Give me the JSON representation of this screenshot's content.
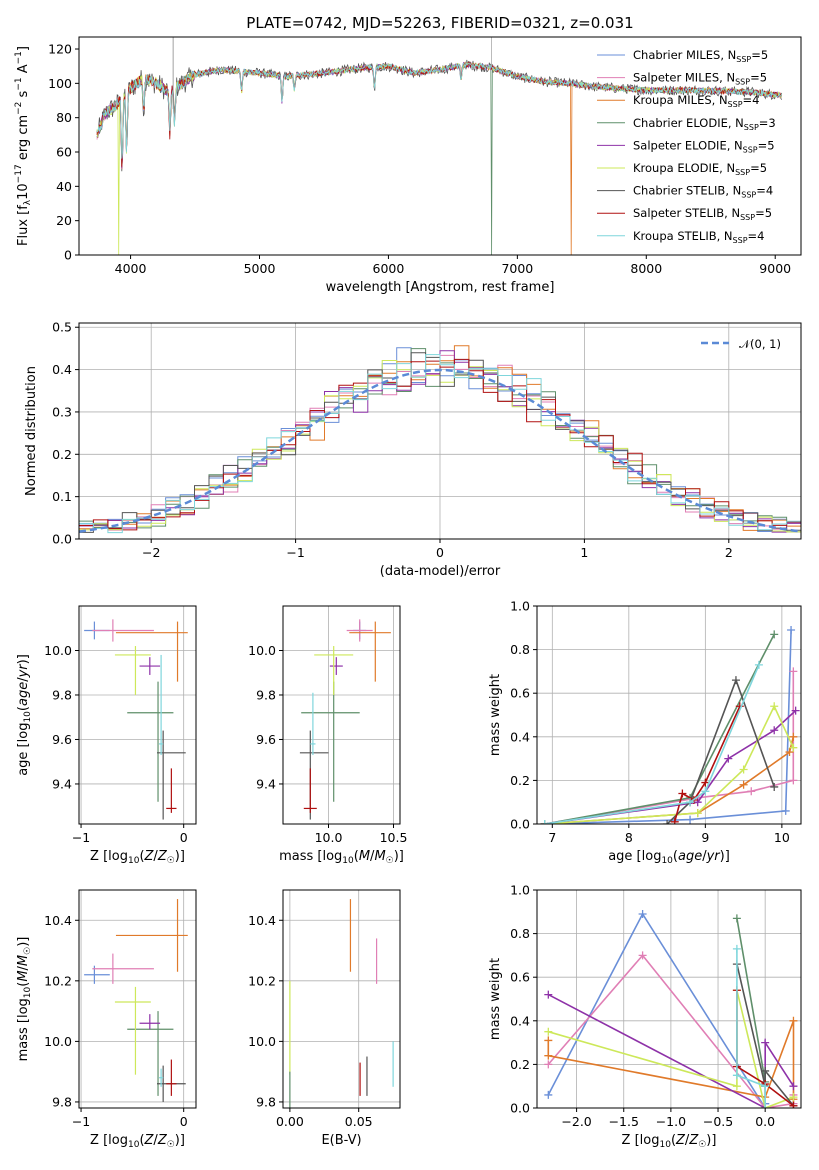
{
  "figure": {
    "title": "PLATE=0742, MJD=52263, FIBERID=0321, z=0.031"
  },
  "models": [
    {
      "name": "Chabrier MILES, N_SSP=5",
      "color": "#6a8fd8"
    },
    {
      "name": "Salpeter MILES, N_SSP=5",
      "color": "#e07fb5"
    },
    {
      "name": "Kroupa MILES, N_SSP=4",
      "color": "#e07a2a"
    },
    {
      "name": "Chabrier ELODIE, N_SSP=3",
      "color": "#5f8f6a"
    },
    {
      "name": "Salpeter ELODIE, N_SSP=5",
      "color": "#8e32a8"
    },
    {
      "name": "Kroupa ELODIE, N_SSP=5",
      "color": "#cde85a"
    },
    {
      "name": "Chabrier STELIB, N_SSP=4",
      "color": "#555555"
    },
    {
      "name": "Salpeter STELIB, N_SSP=5",
      "color": "#b01010"
    },
    {
      "name": "Kroupa STELIB, N_SSP=4",
      "color": "#7fd6dc"
    }
  ],
  "chart_data": [
    {
      "id": "spectrum",
      "type": "line",
      "title": "PLATE=0742, MJD=52263, FIBERID=0321, z=0.031",
      "xlabel": "wavelength [Angstrom, rest frame]",
      "ylabel": "Flux [f_λ 10^-17 erg cm^-2 s^-1 A^-1]",
      "xlim": [
        3600,
        9200
      ],
      "ylim": [
        0,
        127
      ],
      "xticks": [
        "4000",
        "5000",
        "6000",
        "7000",
        "8000",
        "9000"
      ],
      "yticks": [
        "0",
        "20",
        "40",
        "60",
        "80",
        "100",
        "120"
      ],
      "grid": false,
      "legend": "top-right",
      "continuum": {
        "x": [
          3740,
          3800,
          3900,
          4000,
          4100,
          4200,
          4300,
          4500,
          4700,
          5000,
          5200,
          5500,
          5800,
          6000,
          6200,
          6400,
          6600,
          6800,
          7000,
          7200,
          7400,
          7600,
          8000,
          8400,
          8800,
          9050
        ],
        "y": [
          70,
          82,
          88,
          97,
          103,
          100,
          95,
          105,
          108,
          106,
          104,
          106,
          109,
          110,
          106,
          108,
          111,
          109,
          104,
          101,
          100,
          98,
          96,
          96,
          95,
          93
        ]
      },
      "features": [
        {
          "x": 3934,
          "depth": 40
        },
        {
          "x": 3969,
          "depth": 35
        },
        {
          "x": 4102,
          "depth": 20
        },
        {
          "x": 4305,
          "depth": 25
        },
        {
          "x": 4341,
          "depth": 20
        },
        {
          "x": 4861,
          "depth": 12
        },
        {
          "x": 5175,
          "depth": 15
        },
        {
          "x": 5270,
          "depth": 8
        },
        {
          "x": 5892,
          "depth": 12
        },
        {
          "x": 6563,
          "depth": 8
        }
      ],
      "drops": [
        {
          "model": 5,
          "x": 3910,
          "to": 0
        },
        {
          "model": 3,
          "x": 6800,
          "to": 0
        },
        {
          "model": 2,
          "x": 7420,
          "to": 0
        }
      ]
    },
    {
      "id": "residual-histogram",
      "type": "histogram",
      "xlabel": "(data-model)/error",
      "ylabel": "Normed distribution",
      "xlim": [
        -2.5,
        2.5
      ],
      "ylim": [
        0,
        0.51
      ],
      "xticks": [
        "−2",
        "−1",
        "0",
        "1",
        "2"
      ],
      "yticks": [
        "0.0",
        "0.1",
        "0.2",
        "0.3",
        "0.4",
        "0.5"
      ],
      "grid": true,
      "legend": "top-right",
      "reference_curve": {
        "name": "𝒩(0, 1)",
        "mean": 0,
        "sigma": 1,
        "color": "#5b8ad6"
      },
      "bin_width": 0.1
    },
    {
      "id": "age-vs-metallicity",
      "type": "errorbar",
      "xlabel": "Z [log10(Z/Z☉)]",
      "ylabel": "age [log10(age/yr)]",
      "xlim": [
        -1.02,
        0.12
      ],
      "ylim": [
        9.22,
        10.2
      ],
      "xticks": [
        "−1",
        "0"
      ],
      "yticks": [
        "9.4",
        "9.6",
        "9.8",
        "10.0"
      ],
      "grid": true,
      "points": [
        {
          "model": 0,
          "x": -0.87,
          "y": 10.09,
          "xerr": [
            0.1,
            0.15
          ],
          "yerr": [
            0.04,
            0.04
          ]
        },
        {
          "model": 1,
          "x": -0.69,
          "y": 10.09,
          "xerr": [
            0.2,
            0.4
          ],
          "yerr": [
            0.05,
            0.05
          ]
        },
        {
          "model": 2,
          "x": -0.06,
          "y": 10.08,
          "xerr": [
            0.6,
            0.1
          ],
          "yerr": [
            0.22,
            0.05
          ]
        },
        {
          "model": 3,
          "x": -0.25,
          "y": 9.72,
          "xerr": [
            0.3,
            0.15
          ],
          "yerr": [
            0.4,
            0.14
          ]
        },
        {
          "model": 4,
          "x": -0.33,
          "y": 9.93,
          "xerr": [
            0.1,
            0.1
          ],
          "yerr": [
            0.04,
            0.04
          ]
        },
        {
          "model": 5,
          "x": -0.47,
          "y": 9.98,
          "xerr": [
            0.2,
            0.15
          ],
          "yerr": [
            0.18,
            0.04
          ]
        },
        {
          "model": 6,
          "x": -0.2,
          "y": 9.54,
          "xerr": [
            0.06,
            0.22
          ],
          "yerr": [
            0.3,
            0.1
          ]
        },
        {
          "model": 7,
          "x": -0.12,
          "y": 9.29,
          "xerr": [
            0.05,
            0.05
          ],
          "yerr": [
            0.02,
            0.18
          ]
        },
        {
          "model": 8,
          "x": -0.22,
          "y": 9.58,
          "xerr": [
            0.02,
            0.02
          ],
          "yerr": [
            0.05,
            0.4
          ]
        }
      ]
    },
    {
      "id": "age-vs-mass",
      "type": "errorbar",
      "xlabel": "mass [log10(M/M☉)]",
      "ylabel": "",
      "xlim": [
        9.65,
        10.55
      ],
      "ylim": [
        9.22,
        10.2
      ],
      "xticks": [
        "10.0",
        "10.5"
      ],
      "yticks": [
        "9.4",
        "9.6",
        "9.8",
        "10.0"
      ],
      "grid": true,
      "points": [
        {
          "model": 0,
          "x": 10.24,
          "y": 10.09,
          "xerr": [
            0.05,
            0.05
          ],
          "yerr": [
            0.04,
            0.04
          ]
        },
        {
          "model": 1,
          "x": 10.24,
          "y": 10.09,
          "xerr": [
            0.1,
            0.1
          ],
          "yerr": [
            0.05,
            0.05
          ]
        },
        {
          "model": 2,
          "x": 10.36,
          "y": 10.08,
          "xerr": [
            0.2,
            0.12
          ],
          "yerr": [
            0.22,
            0.05
          ]
        },
        {
          "model": 3,
          "x": 10.04,
          "y": 9.72,
          "xerr": [
            0.25,
            0.2
          ],
          "yerr": [
            0.4,
            0.14
          ]
        },
        {
          "model": 4,
          "x": 10.06,
          "y": 9.93,
          "xerr": [
            0.05,
            0.05
          ],
          "yerr": [
            0.04,
            0.04
          ]
        },
        {
          "model": 5,
          "x": 10.04,
          "y": 9.98,
          "xerr": [
            0.15,
            0.15
          ],
          "yerr": [
            0.18,
            0.04
          ]
        },
        {
          "model": 6,
          "x": 9.86,
          "y": 9.54,
          "xerr": [
            0.08,
            0.14
          ],
          "yerr": [
            0.3,
            0.1
          ]
        },
        {
          "model": 7,
          "x": 9.86,
          "y": 9.29,
          "xerr": [
            0.05,
            0.05
          ],
          "yerr": [
            0.02,
            0.18
          ]
        },
        {
          "model": 8,
          "x": 9.88,
          "y": 9.58,
          "xerr": [
            0.02,
            0.02
          ],
          "yerr": [
            0.05,
            0.23
          ]
        }
      ]
    },
    {
      "id": "mass-weight-vs-age",
      "type": "line",
      "xlabel": "age [log10(age/yr)]",
      "ylabel": "mass weight",
      "xlim": [
        6.8,
        10.25
      ],
      "ylim": [
        0,
        1.0
      ],
      "xticks": [
        "7",
        "8",
        "9",
        "10"
      ],
      "yticks": [
        "0.0",
        "0.2",
        "0.4",
        "0.6",
        "0.8",
        "1.0"
      ],
      "grid": true,
      "series": [
        {
          "model": 0,
          "x": [
            6.9,
            8.8,
            10.05,
            10.12
          ],
          "y": [
            0.0,
            0.02,
            0.06,
            0.89
          ]
        },
        {
          "model": 1,
          "x": [
            6.9,
            8.9,
            9.6,
            10.15,
            10.15
          ],
          "y": [
            0.0,
            0.12,
            0.15,
            0.2,
            0.7
          ]
        },
        {
          "model": 2,
          "x": [
            6.9,
            8.9,
            9.5,
            10.1,
            10.15
          ],
          "y": [
            0.0,
            0.05,
            0.18,
            0.33,
            0.4
          ]
        },
        {
          "model": 3,
          "x": [
            6.9,
            8.8,
            9.9
          ],
          "y": [
            0.0,
            0.12,
            0.87
          ]
        },
        {
          "model": 4,
          "x": [
            6.9,
            8.9,
            9.3,
            9.9,
            10.18
          ],
          "y": [
            0.0,
            0.1,
            0.3,
            0.43,
            0.52
          ]
        },
        {
          "model": 5,
          "x": [
            6.9,
            8.9,
            9.5,
            9.9,
            10.15
          ],
          "y": [
            0.0,
            0.05,
            0.25,
            0.54,
            0.35
          ]
        },
        {
          "model": 6,
          "x": [
            8.5,
            8.8,
            9.4,
            9.9
          ],
          "y": [
            0.0,
            0.1,
            0.66,
            0.17
          ]
        },
        {
          "model": 7,
          "x": [
            8.6,
            8.7,
            8.85,
            9.0,
            9.45
          ],
          "y": [
            0.01,
            0.14,
            0.11,
            0.19,
            0.54
          ]
        },
        {
          "model": 8,
          "x": [
            6.9,
            8.8,
            9.0,
            9.7
          ],
          "y": [
            0.0,
            0.1,
            0.15,
            0.73
          ]
        }
      ]
    },
    {
      "id": "mass-vs-metallicity",
      "type": "errorbar",
      "xlabel": "Z [log10(Z/Z☉)]",
      "ylabel": "mass [log10(M/M☉)]",
      "xlim": [
        -1.02,
        0.12
      ],
      "ylim": [
        9.78,
        10.5
      ],
      "xticks": [
        "−1",
        "0"
      ],
      "yticks": [
        "9.8",
        "10.0",
        "10.2",
        "10.4"
      ],
      "grid": true,
      "points": [
        {
          "model": 0,
          "x": -0.87,
          "y": 10.22,
          "xerr": [
            0.1,
            0.15
          ],
          "yerr": [
            0.03,
            0.03
          ]
        },
        {
          "model": 1,
          "x": -0.69,
          "y": 10.24,
          "xerr": [
            0.2,
            0.4
          ],
          "yerr": [
            0.05,
            0.05
          ]
        },
        {
          "model": 2,
          "x": -0.06,
          "y": 10.35,
          "xerr": [
            0.6,
            0.1
          ],
          "yerr": [
            0.12,
            0.12
          ]
        },
        {
          "model": 3,
          "x": -0.25,
          "y": 10.04,
          "xerr": [
            0.3,
            0.15
          ],
          "yerr": [
            0.22,
            0.06
          ]
        },
        {
          "model": 4,
          "x": -0.33,
          "y": 10.06,
          "xerr": [
            0.1,
            0.1
          ],
          "yerr": [
            0.02,
            0.03
          ]
        },
        {
          "model": 5,
          "x": -0.47,
          "y": 10.13,
          "xerr": [
            0.2,
            0.15
          ],
          "yerr": [
            0.24,
            0.05
          ]
        },
        {
          "model": 6,
          "x": -0.2,
          "y": 9.86,
          "xerr": [
            0.06,
            0.22
          ],
          "yerr": [
            0.06,
            0.06
          ]
        },
        {
          "model": 7,
          "x": -0.12,
          "y": 9.86,
          "xerr": [
            0.05,
            0.05
          ],
          "yerr": [
            0.04,
            0.08
          ]
        },
        {
          "model": 8,
          "x": -0.22,
          "y": 9.88,
          "xerr": [
            0.02,
            0.02
          ],
          "yerr": [
            0.03,
            0.03
          ]
        }
      ]
    },
    {
      "id": "mass-vs-extinction",
      "type": "errorbar",
      "xlabel": "E(B-V)",
      "ylabel": "",
      "xlim": [
        -0.005,
        0.08
      ],
      "ylim": [
        9.78,
        10.5
      ],
      "xticks": [
        "0.00",
        "0.05"
      ],
      "yticks": [
        "9.8",
        "10.0",
        "10.2",
        "10.4"
      ],
      "grid": true,
      "points": [
        {
          "model": 2,
          "x": 0.044,
          "y": 10.35,
          "xerr": [
            0,
            0
          ],
          "yerr": [
            0.12,
            0.12
          ]
        },
        {
          "model": 1,
          "x": 0.063,
          "y": 10.24,
          "xerr": [
            0,
            0
          ],
          "yerr": [
            0.05,
            0.1
          ]
        },
        {
          "model": 5,
          "x": 0.0,
          "y": 10.03,
          "xerr": [
            0,
            0
          ],
          "yerr": [
            0.14,
            0.17
          ]
        },
        {
          "model": 3,
          "x": 0.0,
          "y": 9.85,
          "xerr": [
            0,
            0
          ],
          "yerr": [
            0.07,
            0.05
          ]
        },
        {
          "model": 7,
          "x": 0.051,
          "y": 9.87,
          "xerr": [
            0,
            0
          ],
          "yerr": [
            0.05,
            0.06
          ]
        },
        {
          "model": 6,
          "x": 0.056,
          "y": 9.9,
          "xerr": [
            0,
            0
          ],
          "yerr": [
            0.08,
            0.05
          ]
        },
        {
          "model": 8,
          "x": 0.075,
          "y": 9.93,
          "xerr": [
            0,
            0
          ],
          "yerr": [
            0.08,
            0.07
          ]
        }
      ]
    },
    {
      "id": "mass-weight-vs-metallicity",
      "type": "line",
      "xlabel": "Z [log10(Z/Z☉)]",
      "ylabel": "mass weight",
      "xlim": [
        -2.42,
        0.38
      ],
      "ylim": [
        0,
        1.0
      ],
      "xticks": [
        "−2.0",
        "−1.5",
        "−1.0",
        "−0.5",
        "0.0"
      ],
      "yticks": [
        "0.0",
        "0.2",
        "0.4",
        "0.6",
        "0.8",
        "1.0"
      ],
      "grid": true,
      "series": [
        {
          "model": 0,
          "x": [
            -2.3,
            -1.3,
            0.0,
            0.0,
            0.0
          ],
          "y": [
            0.06,
            0.89,
            0.0,
            0.02,
            0.02
          ]
        },
        {
          "model": 1,
          "x": [
            -2.3,
            -1.3,
            0.0,
            0.3,
            0.3
          ],
          "y": [
            0.2,
            0.7,
            0.0,
            0.02,
            0.06
          ]
        },
        {
          "model": 2,
          "x": [
            -2.3,
            -2.3,
            0.0,
            0.3,
            0.3
          ],
          "y": [
            0.31,
            0.24,
            0.05,
            0.4,
            0.04
          ]
        },
        {
          "model": 3,
          "x": [
            -0.3,
            0.0,
            0.0
          ],
          "y": [
            0.87,
            0.12,
            0.0
          ]
        },
        {
          "model": 4,
          "x": [
            -2.3,
            0.0,
            0.0,
            0.3
          ],
          "y": [
            0.52,
            0.0,
            0.3,
            0.1
          ]
        },
        {
          "model": 5,
          "x": [
            -2.3,
            -0.3,
            -0.3,
            0.0,
            0.3
          ],
          "y": [
            0.35,
            0.1,
            0.54,
            0.0,
            0.05
          ]
        },
        {
          "model": 6,
          "x": [
            -0.3,
            0.0,
            0.0,
            0.3
          ],
          "y": [
            0.66,
            0.1,
            0.17,
            0.01
          ]
        },
        {
          "model": 7,
          "x": [
            -0.3,
            -0.3,
            0.0,
            0.3
          ],
          "y": [
            0.54,
            0.19,
            0.11,
            0.01
          ]
        },
        {
          "model": 8,
          "x": [
            -0.3,
            -0.3,
            0.0,
            0.0
          ],
          "y": [
            0.73,
            0.15,
            0.1,
            0.0
          ]
        }
      ]
    }
  ]
}
